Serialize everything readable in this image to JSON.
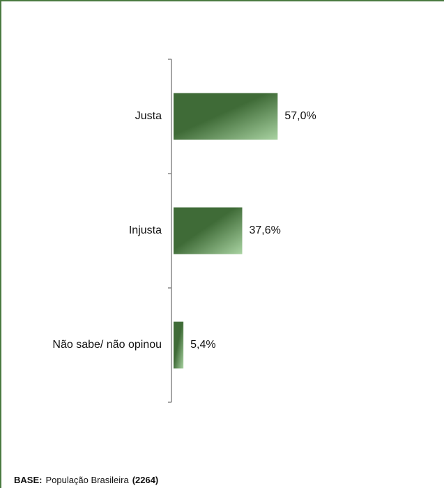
{
  "chart_data": {
    "type": "hbar",
    "categories": [
      "Justa",
      "Injusta",
      "Não sabe/ não opinou"
    ],
    "values": [
      57.0,
      37.6,
      5.4
    ],
    "value_labels": [
      "57,0%",
      "37,6%",
      "5,4%"
    ],
    "color": "#3f6b37"
  },
  "footer": {
    "label": "BASE:",
    "text": "População Brasileira",
    "base": "(2264)"
  }
}
